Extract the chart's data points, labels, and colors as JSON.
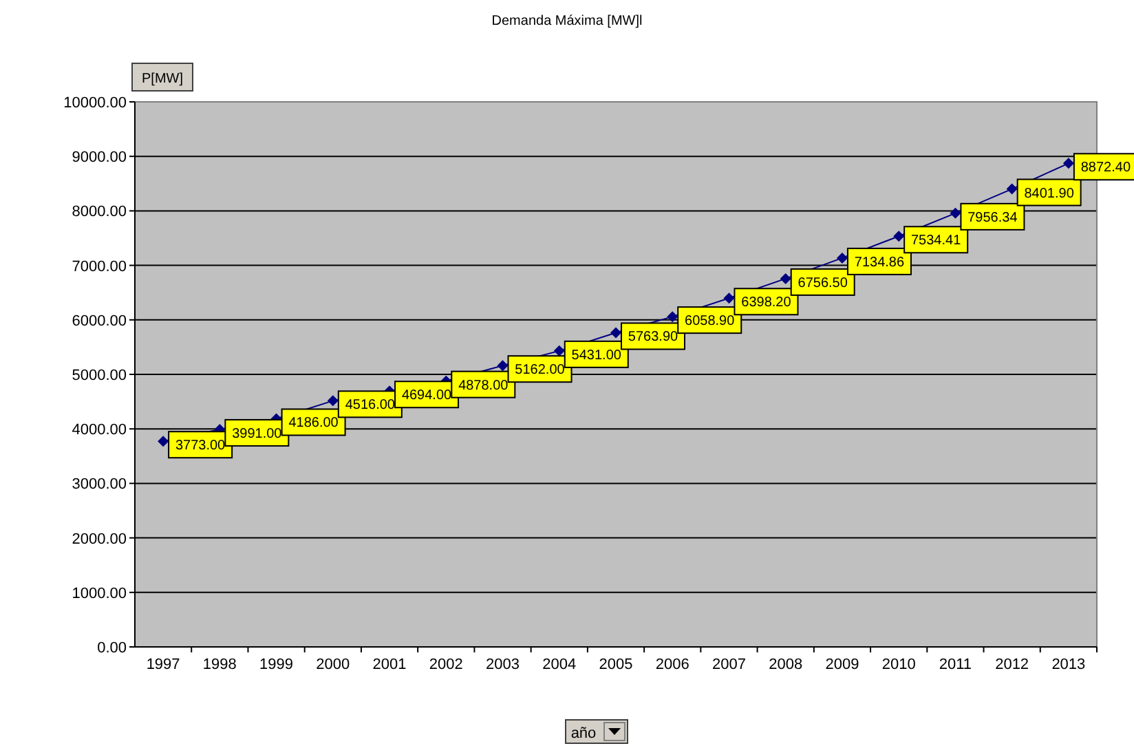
{
  "chart_data": {
    "type": "line",
    "title": "Demanda Máxima [MW]l",
    "categories": [
      "1997",
      "1998",
      "1999",
      "2000",
      "2001",
      "2002",
      "2003",
      "2004",
      "2005",
      "2006",
      "2007",
      "2008",
      "2009",
      "2010",
      "2011",
      "2012",
      "2013"
    ],
    "series": [
      {
        "color": "#000080",
        "values": [
          3773,
          3991,
          4186,
          4516,
          4694,
          4878,
          5162,
          5431,
          5763.9,
          6058.9,
          6398.2,
          6756.5,
          7134.86,
          7534.41,
          7956.34,
          8401.9,
          8872.4
        ],
        "value_labels": [
          "3773.00",
          "3991.00",
          "4186.00",
          "4516.00",
          "4694.00",
          "4878.00",
          "5162.00",
          "5431.00",
          "5763.90",
          "6058.90",
          "6398.20",
          "6756.50",
          "7134.86",
          "7534.41",
          "7956.34",
          "8401.90",
          "8872.40"
        ]
      }
    ],
    "ylim": [
      0,
      10000
    ],
    "yticks": [
      {
        "value": 0,
        "label": "0.00"
      },
      {
        "value": 1000,
        "label": "1000.00"
      },
      {
        "value": 2000,
        "label": "2000.00"
      },
      {
        "value": 3000,
        "label": "3000.00"
      },
      {
        "value": 4000,
        "label": "4000.00"
      },
      {
        "value": 5000,
        "label": "5000.00"
      },
      {
        "value": 6000,
        "label": "6000.00"
      },
      {
        "value": 7000,
        "label": "7000.00"
      },
      {
        "value": 8000,
        "label": "8000.00"
      },
      {
        "value": 9000,
        "label": "9000.00"
      },
      {
        "value": 10000,
        "label": "10000.00"
      }
    ],
    "grid": "y",
    "marker": "diamond",
    "line_style": "solid",
    "annotations": [
      "P[MW]",
      "año"
    ]
  }
}
